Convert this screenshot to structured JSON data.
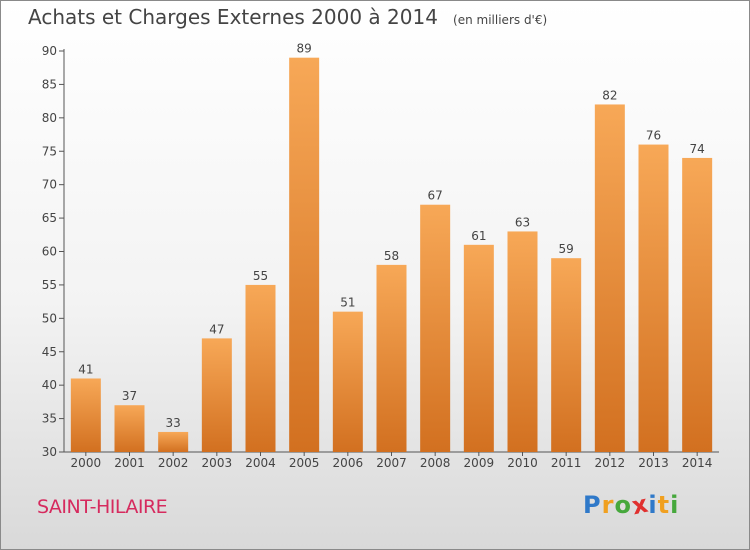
{
  "header": {
    "title": "Achats et Charges Externes 2000 à 2014",
    "subtitle": "(en milliers d'€)"
  },
  "commune": "SAINT-HILAIRE",
  "logo": {
    "text": "Proxiti",
    "letters": [
      {
        "ch": "P",
        "color": "#2f79c9"
      },
      {
        "ch": "r",
        "color": "#f0a020"
      },
      {
        "ch": "o",
        "color": "#46a83c"
      },
      {
        "ch": "x",
        "color": "#e0302f"
      },
      {
        "ch": "i",
        "color": "#2f79c9"
      },
      {
        "ch": "t",
        "color": "#f0a020"
      },
      {
        "ch": "i",
        "color": "#46a83c"
      }
    ]
  },
  "chart_data": {
    "type": "bar",
    "title": "Achats et Charges Externes 2000 à 2014",
    "subtitle": "(en milliers d'€)",
    "categories": [
      "2000",
      "2001",
      "2002",
      "2003",
      "2004",
      "2005",
      "2006",
      "2007",
      "2008",
      "2009",
      "2010",
      "2011",
      "2012",
      "2013",
      "2014"
    ],
    "values": [
      41,
      37,
      33,
      47,
      55,
      89,
      51,
      58,
      67,
      61,
      63,
      59,
      82,
      76,
      74
    ],
    "ylim": [
      30,
      90
    ],
    "yticks": [
      30,
      35,
      40,
      45,
      50,
      55,
      60,
      65,
      70,
      75,
      80,
      85,
      90
    ],
    "grid": false,
    "legend": "none",
    "bar_color_light": "#f7a857",
    "bar_color_dark": "#d27020"
  }
}
